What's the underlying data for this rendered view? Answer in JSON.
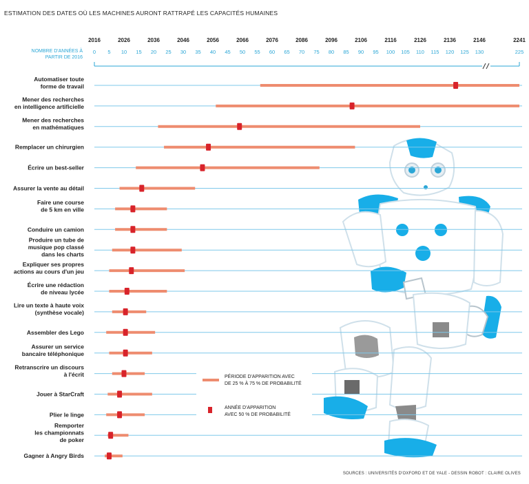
{
  "title": "ESTIMATION DES DATES OÙ LES MACHINES AURONT RATTRAPÉ LES CAPACITÉS HUMAINES",
  "source": "SOURCES : UNIVERSITÉS D'OXFORD ET DE YALE - DESSIN ROBOT : CLAIRE OLIVES",
  "years_axis_label": "NOMBRE D'ANNÉES À PARTIR DE 2016",
  "colors": {
    "range": "#ee8c6f",
    "median": "#d8232a",
    "grid": "#7ec8ea",
    "accent": "#2aa6d6"
  },
  "chart_data": {
    "type": "range",
    "base_year": 2016,
    "axis_break_between": [
      130,
      225
    ],
    "year_ticks": [
      2016,
      2026,
      2036,
      2046,
      2056,
      2066,
      2076,
      2086,
      2096,
      2106,
      2116,
      2126,
      2136,
      2146,
      2241
    ],
    "offset_ticks": [
      0,
      5,
      10,
      15,
      20,
      25,
      30,
      35,
      40,
      45,
      50,
      55,
      60,
      65,
      70,
      75,
      80,
      85,
      90,
      95,
      100,
      105,
      110,
      115,
      120,
      125,
      130,
      225
    ],
    "legend": {
      "range": "PÉRIODE D'APPARITION AVEC DE 25 % À 75 % DE PROBABILITÉ",
      "median": "ANNÉE D'APPARITION AVEC 50 % DE PROBABILITÉ"
    },
    "tasks": [
      {
        "label": [
          "Automatiser toute",
          "forme de travail"
        ],
        "low": 56,
        "median": 122,
        "high": 225
      },
      {
        "label": [
          "Mener des recherches",
          "en intelligence artificielle"
        ],
        "low": 41,
        "median": 87,
        "high": 225
      },
      {
        "label": [
          "Mener des recherches",
          "en mathématiques"
        ],
        "low": 21.5,
        "median": 49,
        "high": 110
      },
      {
        "label": [
          "Remplacer un chirurgien"
        ],
        "low": 23.5,
        "median": 38.5,
        "high": 88
      },
      {
        "label": [
          "Écrire un best-seller"
        ],
        "low": 14,
        "median": 36.5,
        "high": 76
      },
      {
        "label": [
          "Assurer la vente au détail"
        ],
        "low": 8.5,
        "median": 16,
        "high": 34
      },
      {
        "label": [
          "Faire une course",
          "de 5 km en ville"
        ],
        "low": 7,
        "median": 13,
        "high": 24.5
      },
      {
        "label": [
          "Conduire un camion"
        ],
        "low": 7,
        "median": 13,
        "high": 24.5
      },
      {
        "label": [
          "Produire un tube de",
          "musique pop classé",
          "dans les charts"
        ],
        "low": 6,
        "median": 13,
        "high": 29.5
      },
      {
        "label": [
          "Expliquer ses propres",
          "actions au cours d'un jeu"
        ],
        "low": 5,
        "median": 12.5,
        "high": 30.5
      },
      {
        "label": [
          "Écrire une rédaction",
          "de niveau lycée"
        ],
        "low": 5,
        "median": 11,
        "high": 24.5
      },
      {
        "label": [
          "Lire un texte à haute voix",
          "(synthèse vocale)"
        ],
        "low": 6,
        "median": 10.5,
        "high": 17.5
      },
      {
        "label": [
          "Assembler des Lego"
        ],
        "low": 4,
        "median": 10.5,
        "high": 20.5
      },
      {
        "label": [
          "Assurer un service",
          "bancaire téléphonique"
        ],
        "low": 5,
        "median": 10.5,
        "high": 19.5
      },
      {
        "label": [
          "Retranscrire un discours",
          "à l'écrit"
        ],
        "low": 6,
        "median": 10,
        "high": 17
      },
      {
        "label": [
          "Jouer à StarCraft"
        ],
        "low": 4.5,
        "median": 8.5,
        "high": 19.5
      },
      {
        "label": [
          "Plier le linge"
        ],
        "low": 4,
        "median": 8.5,
        "high": 17
      },
      {
        "label": [
          "Remporter",
          "les championnats",
          "de poker"
        ],
        "low": 4.5,
        "median": 5.5,
        "high": 11.5
      },
      {
        "label": [
          "Gagner à Angry Birds"
        ],
        "low": 3.5,
        "median": 5,
        "high": 9.5
      }
    ]
  }
}
